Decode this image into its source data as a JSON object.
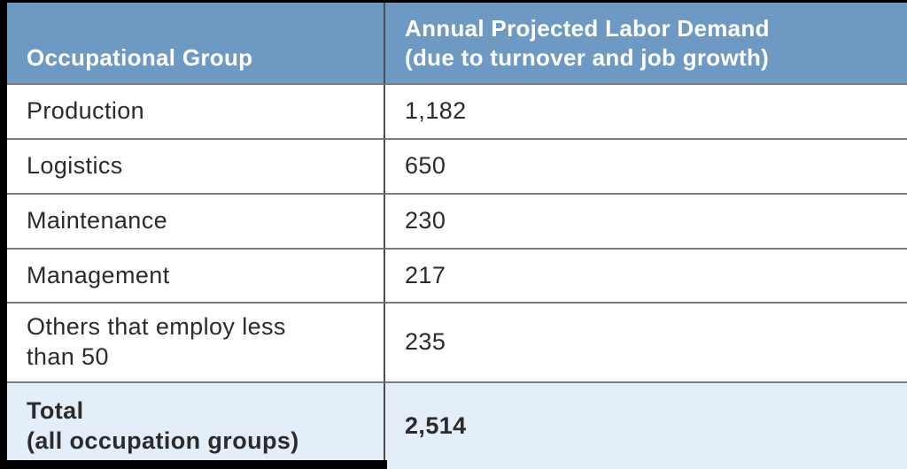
{
  "table": {
    "columns": [
      {
        "label": "Occupational Group"
      },
      {
        "label": "Annual Projected Labor Demand\n(due to turnover and job growth)"
      }
    ],
    "rows": [
      {
        "group": "Production",
        "demand": "1,182"
      },
      {
        "group": "Logistics",
        "demand": "650"
      },
      {
        "group": "Maintenance",
        "demand": "230"
      },
      {
        "group": "Management",
        "demand": "217"
      },
      {
        "group": "Others that employ less\nthan 50",
        "demand": "235"
      }
    ],
    "total": {
      "group": "Total\n(all occupation groups)",
      "demand": "2,514"
    }
  },
  "chart_data": {
    "type": "table",
    "columns": [
      "Occupational Group",
      "Annual Projected Labor Demand (due to turnover and job growth)"
    ],
    "rows": [
      [
        "Production",
        1182
      ],
      [
        "Logistics",
        650
      ],
      [
        "Maintenance",
        230
      ],
      [
        "Management",
        217
      ],
      [
        "Others that employ less than 50",
        235
      ]
    ],
    "total_row": [
      "Total (all occupation groups)",
      2514
    ]
  },
  "colors": {
    "header_bg": "#6e99c3",
    "header_text": "#ffffff",
    "total_bg": "#e4eef8",
    "text_dark": "#2d2a2b",
    "grid_line": "#7c7c7c",
    "col_divider": "#4d4d4d",
    "border_black": "#000000"
  }
}
